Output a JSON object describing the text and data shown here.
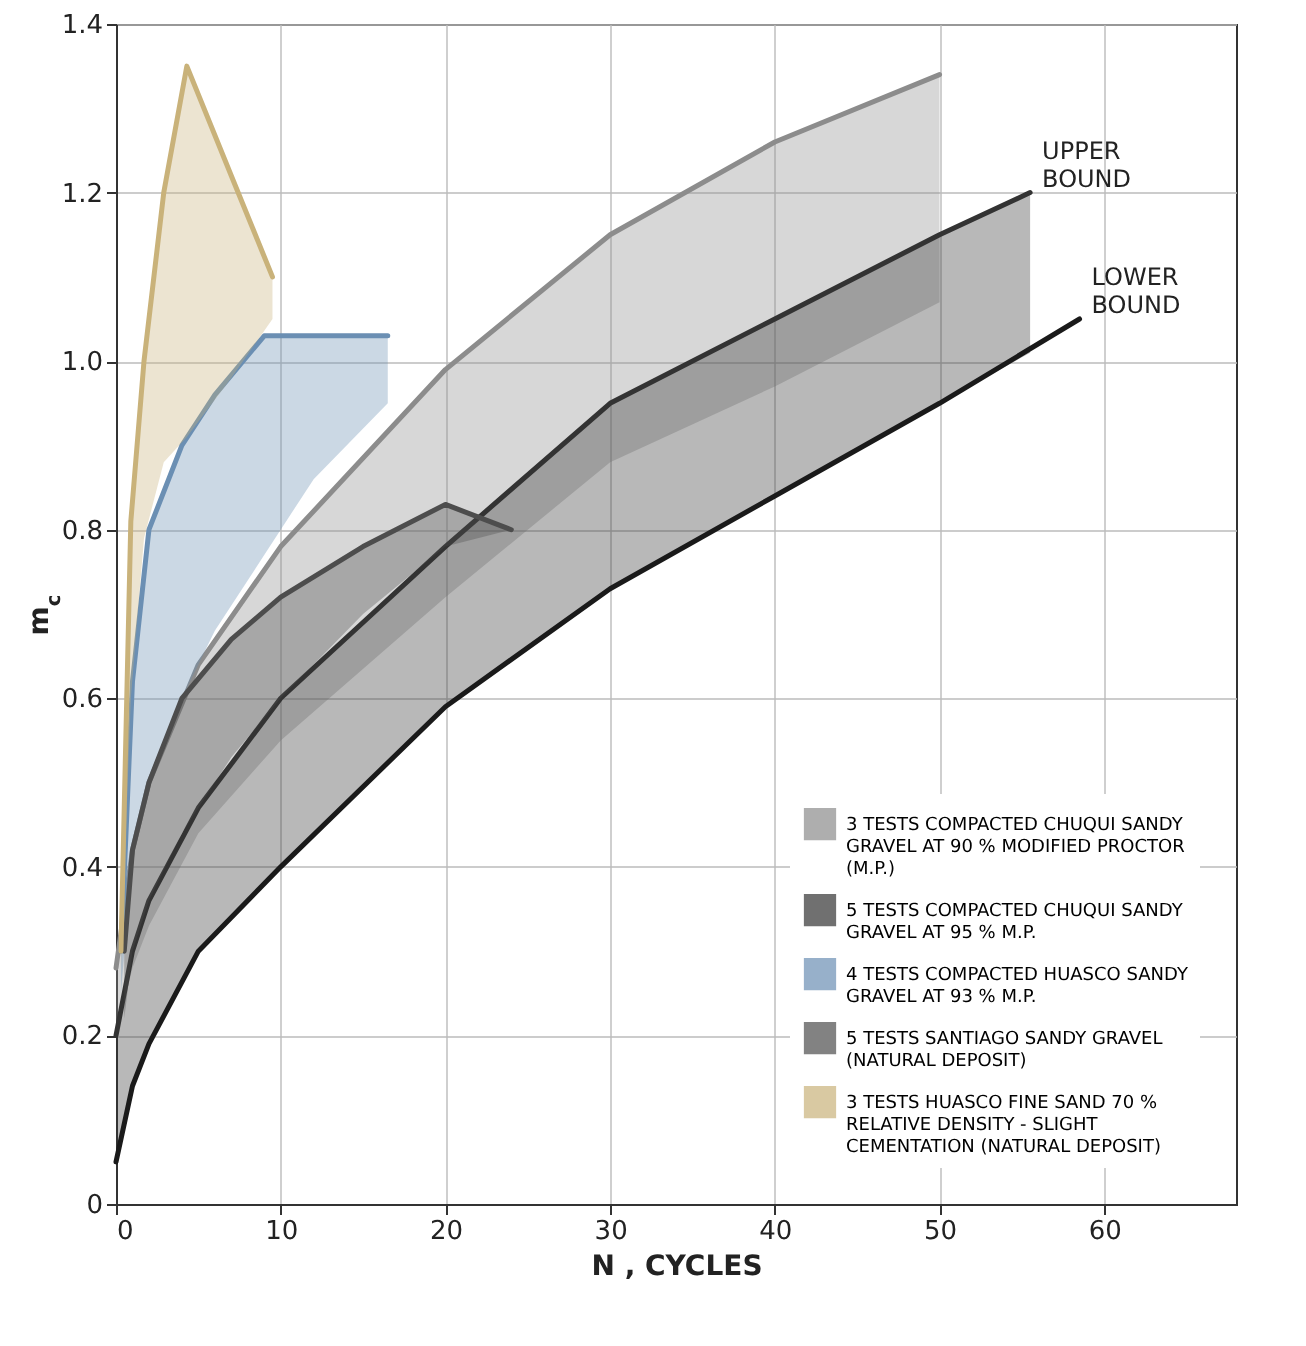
{
  "chart_data": {
    "type": "line",
    "xlabel": "N , CYCLES",
    "ylabel": "m$_{c}$",
    "xlim": [
      0,
      68
    ],
    "ylim": [
      0,
      1.4
    ],
    "xticks": [
      0,
      10,
      20,
      30,
      40,
      50,
      60
    ],
    "yticks": [
      0,
      0.2,
      0.4,
      0.6,
      0.8,
      {
        "value": 1,
        "label": "1.0"
      },
      1.2,
      1.4
    ],
    "grid": true,
    "legend": "bottom right",
    "series": [
      {
        "name": "3 TESTS COMPACTED CHUQUI SANDY GRAVEL AT 90 % MODIFIED PROCTOR (M.P.)",
        "color": "#8c8c8c",
        "x": [
          0,
          1,
          2,
          5,
          10,
          20,
          30,
          40,
          50
        ],
        "values": [
          0.28,
          0.42,
          0.5,
          0.64,
          0.78,
          0.99,
          1.15,
          1.26,
          1.34
        ],
        "upper": [
          0.28,
          0.42,
          0.5,
          0.64,
          0.78,
          0.99,
          1.15,
          1.26,
          1.34
        ],
        "lower": [
          0.2,
          0.28,
          0.33,
          0.44,
          0.55,
          0.72,
          0.88,
          0.97,
          1.07
        ]
      },
      {
        "name": "5 TESTS COMPACTED CHUQUI SANDY GRAVEL AT 95 % M.P.",
        "color": "#333333",
        "x": [
          0,
          1,
          2,
          5,
          10,
          20,
          30,
          40,
          50,
          55.5
        ],
        "values": [
          0.2,
          0.3,
          0.36,
          0.47,
          0.6,
          0.78,
          0.95,
          1.05,
          1.15,
          1.2
        ],
        "upper": [
          0.2,
          0.3,
          0.36,
          0.47,
          0.6,
          0.78,
          0.95,
          1.05,
          1.15,
          1.2
        ],
        "lower": [
          0.05,
          0.14,
          0.19,
          0.3,
          0.4,
          0.59,
          0.73,
          0.84,
          0.95,
          1.01
        ]
      },
      {
        "name": "4 TESTS COMPACTED HUASCO SANDY GRAVEL AT 93 % M.P.",
        "color": "#6b8fb3",
        "x": [
          0.3,
          1,
          2,
          4,
          6,
          9,
          12,
          16.5
        ],
        "values": [
          0.3,
          0.62,
          0.8,
          0.9,
          0.96,
          1.03,
          1.03,
          1.03
        ],
        "upper": [
          0.3,
          0.62,
          0.8,
          0.9,
          0.96,
          1.03,
          1.03,
          1.03
        ],
        "lower": [
          0.25,
          0.42,
          0.5,
          0.6,
          0.68,
          0.77,
          0.86,
          0.95
        ]
      },
      {
        "name": "5 TESTS SANTIAGO SANDY GRAVEL (NATURAL DEPOSIT)",
        "color": "#4d4d4d",
        "x": [
          0.5,
          1,
          2,
          4,
          7,
          10,
          15,
          20,
          24
        ],
        "values": [
          0.3,
          0.42,
          0.5,
          0.6,
          0.67,
          0.72,
          0.78,
          0.83,
          0.8
        ],
        "upper": [
          0.3,
          0.42,
          0.5,
          0.6,
          0.67,
          0.72,
          0.78,
          0.83,
          0.8
        ],
        "lower": [
          0.22,
          0.3,
          0.36,
          0.44,
          0.53,
          0.6,
          0.7,
          0.78,
          0.8
        ]
      },
      {
        "name": "3 TESTS HUASCO FINE SAND 70 % RELATIVE DENSITY - SLIGHT CEMENTATION (NATURAL DEPOSIT)",
        "color": "#c9b27a",
        "x": [
          0.3,
          0.9,
          1.7,
          2.9,
          4.3,
          7,
          9.5
        ],
        "values": [
          0.3,
          0.81,
          1.0,
          1.2,
          1.35,
          1.22,
          1.1
        ],
        "upper": [
          0.3,
          0.81,
          1.0,
          1.2,
          1.35,
          1.22,
          1.1
        ],
        "lower": [
          0.28,
          0.6,
          0.79,
          0.88,
          0.91,
          0.98,
          1.05
        ]
      },
      {
        "color": "#1a1a1a",
        "x": [
          0,
          1,
          2,
          5,
          10,
          20,
          30,
          40,
          50,
          58.5
        ],
        "values": [
          0.05,
          0.14,
          0.19,
          0.3,
          0.4,
          0.59,
          0.73,
          0.84,
          0.95,
          1.05
        ]
      }
    ],
    "annotations": [
      {
        "text": "UPPER BOUND",
        "x": 55.5,
        "y": 1.2
      },
      {
        "text": "LOWER BOUND",
        "x": 58.5,
        "y": 1.05
      }
    ]
  }
}
